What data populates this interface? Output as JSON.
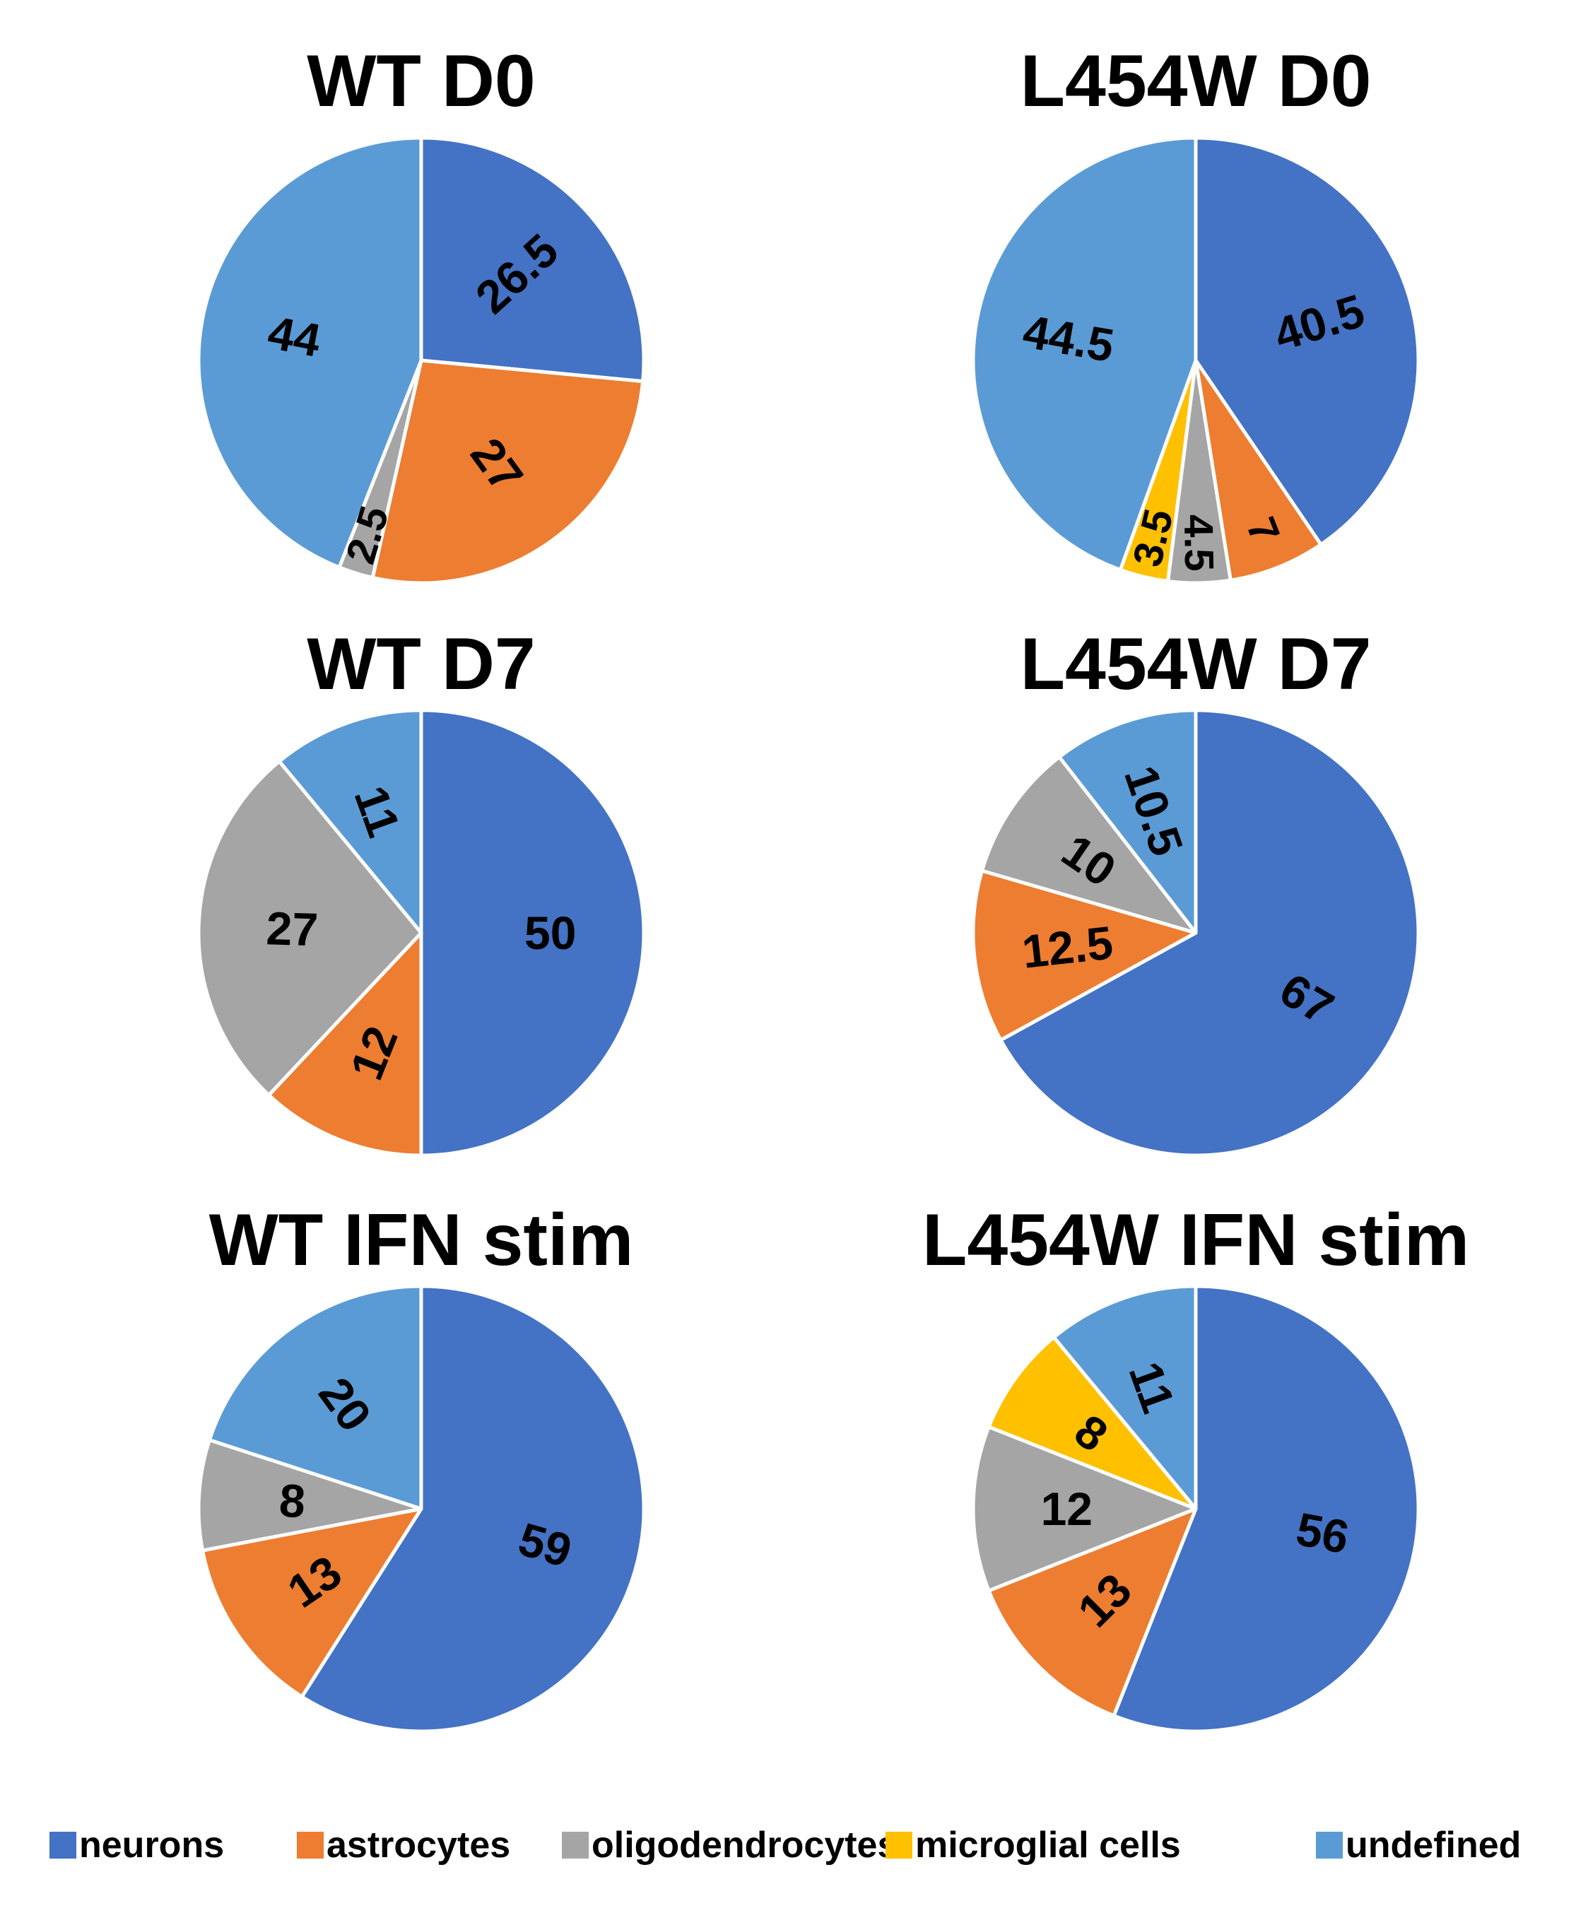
{
  "chart_data": [
    {
      "type": "pie",
      "title": "WT D0",
      "slices": [
        {
          "category": "neurons",
          "value": 26.5
        },
        {
          "category": "astrocytes",
          "value": 27
        },
        {
          "category": "oligodendrocytes",
          "value": 2.5
        },
        {
          "category": "microglial cells",
          "value": 0
        },
        {
          "category": "undefined",
          "value": 44
        }
      ]
    },
    {
      "type": "pie",
      "title": "L454W D0",
      "slices": [
        {
          "category": "neurons",
          "value": 40.5
        },
        {
          "category": "astrocytes",
          "value": 7
        },
        {
          "category": "oligodendrocytes",
          "value": 4.5
        },
        {
          "category": "microglial cells",
          "value": 3.5
        },
        {
          "category": "undefined",
          "value": 44.5
        }
      ]
    },
    {
      "type": "pie",
      "title": "WT D7",
      "slices": [
        {
          "category": "neurons",
          "value": 50
        },
        {
          "category": "astrocytes",
          "value": 12
        },
        {
          "category": "oligodendrocytes",
          "value": 27
        },
        {
          "category": "microglial cells",
          "value": 0
        },
        {
          "category": "undefined",
          "value": 11
        }
      ]
    },
    {
      "type": "pie",
      "title": "L454W D7",
      "slices": [
        {
          "category": "neurons",
          "value": 67
        },
        {
          "category": "astrocytes",
          "value": 12.5
        },
        {
          "category": "oligodendrocytes",
          "value": 10
        },
        {
          "category": "microglial cells",
          "value": 0
        },
        {
          "category": "undefined",
          "value": 10.5
        }
      ]
    },
    {
      "type": "pie",
      "title": "WT IFN stim",
      "slices": [
        {
          "category": "neurons",
          "value": 59
        },
        {
          "category": "astrocytes",
          "value": 13
        },
        {
          "category": "oligodendrocytes",
          "value": 8
        },
        {
          "category": "microglial cells",
          "value": 0
        },
        {
          "category": "undefined",
          "value": 20
        }
      ]
    },
    {
      "type": "pie",
      "title": "L454W IFN stim",
      "slices": [
        {
          "category": "neurons",
          "value": 56
        },
        {
          "category": "astrocytes",
          "value": 13
        },
        {
          "category": "oligodendrocytes",
          "value": 12
        },
        {
          "category": "microglial cells",
          "value": 8
        },
        {
          "category": "undefined",
          "value": 11
        }
      ]
    }
  ],
  "legend": {
    "position": "bottom",
    "items": [
      {
        "label": "neurons",
        "color": "#4472C4"
      },
      {
        "label": "astrocytes",
        "color": "#ED7D31"
      },
      {
        "label": "oligodendrocytes",
        "color": "#A5A5A5"
      },
      {
        "label": "microglial cells",
        "color": "#FFC000"
      },
      {
        "label": "undefined",
        "color": "#5B9BD5"
      }
    ]
  },
  "colors": {
    "neurons": "#4472C4",
    "astrocytes": "#ED7D31",
    "oligodendrocytes": "#A5A5A5",
    "microglial cells": "#FFC000",
    "undefined": "#5B9BD5",
    "slice_border": "#FFFFFF"
  }
}
